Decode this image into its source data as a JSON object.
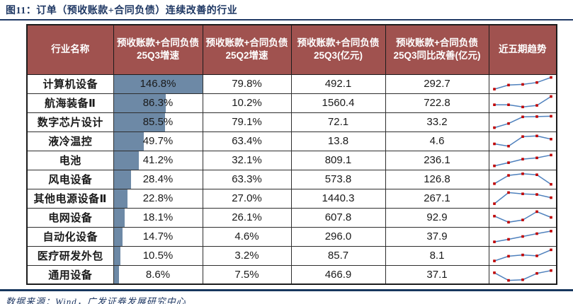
{
  "title": "图11：订单（预收账款+合同负债）连续改善的行业",
  "footer": {
    "source": "数据来源：Wind，广发证券发展研究中心"
  },
  "colors": {
    "header_bg": "#A0524F",
    "header_text": "#FFFFFF",
    "growth_bar": "#6D89A6",
    "title_navy": "#1F3864",
    "sparkline_line": "#4F81BD",
    "sparkline_marker": "#C00000",
    "grid_border": "#2e2e2e"
  },
  "chart_data": {
    "type": "table",
    "title": "图11：订单（预收账款+合同负债）连续改善的行业",
    "columns": [
      "行业名称",
      "预收账款+合同负债25Q3增速",
      "预收账款+合同负债25Q2增速",
      "预收账款+合同负债25Q3(亿元)",
      "预收账款+合同负债25Q3同比改善(亿元)",
      "近五期趋势"
    ],
    "bar_max_pct": 146.8,
    "sparkline_type": "line",
    "rows": [
      {
        "industry": "计算机设备",
        "q3_growth_pct": 146.8,
        "q3_growth_label": "146.8%",
        "q2_growth_pct": 79.8,
        "q2_growth_label": "79.8%",
        "q3_balance": 492.1,
        "q3_balance_label": "492.1",
        "yoy_improve": 292.7,
        "yoy_improve_label": "292.7",
        "trend": [
          0.08,
          0.4,
          0.45,
          0.6,
          1.0
        ]
      },
      {
        "industry": "航海装备Ⅱ",
        "q3_growth_pct": 86.3,
        "q3_growth_label": "86.3%",
        "q2_growth_pct": 10.2,
        "q2_growth_label": "10.2%",
        "q3_balance": 1560.4,
        "q3_balance_label": "1560.4",
        "yoy_improve": 722.8,
        "yoy_improve_label": "722.8",
        "trend": [
          0.35,
          0.35,
          0.18,
          0.3,
          1.0
        ]
      },
      {
        "industry": "数字芯片设计",
        "q3_growth_pct": 85.5,
        "q3_growth_label": "85.5%",
        "q2_growth_pct": 79.1,
        "q2_growth_label": "79.1%",
        "q3_balance": 72.1,
        "q3_balance_label": "72.1",
        "yoy_improve": 33.2,
        "yoy_improve_label": "33.2",
        "trend": [
          0.05,
          0.38,
          0.9,
          0.92,
          0.95
        ]
      },
      {
        "industry": "液冷温控",
        "q3_growth_pct": 49.7,
        "q3_growth_label": "49.7%",
        "q2_growth_pct": 63.4,
        "q2_growth_label": "63.4%",
        "q3_balance": 13.8,
        "q3_balance_label": "13.8",
        "yoy_improve": 4.6,
        "yoy_improve_label": "4.6",
        "trend": [
          0.28,
          0.1,
          0.85,
          0.9,
          0.65
        ]
      },
      {
        "industry": "电池",
        "q3_growth_pct": 41.2,
        "q3_growth_label": "41.2%",
        "q2_growth_pct": 32.1,
        "q2_growth_label": "32.1%",
        "q3_balance": 809.1,
        "q3_balance_label": "809.1",
        "yoy_improve": 236.1,
        "yoy_improve_label": "236.1",
        "trend": [
          0.05,
          0.3,
          0.58,
          0.68,
          0.9
        ]
      },
      {
        "industry": "风电设备",
        "q3_growth_pct": 28.4,
        "q3_growth_label": "28.4%",
        "q2_growth_pct": 63.3,
        "q2_growth_label": "63.3%",
        "q3_balance": 573.8,
        "q3_balance_label": "573.8",
        "yoy_improve": 126.8,
        "yoy_improve_label": "126.8",
        "trend": [
          0.15,
          0.8,
          0.93,
          0.85,
          0.1
        ]
      },
      {
        "industry": "其他电源设备Ⅱ",
        "q3_growth_pct": 22.8,
        "q3_growth_label": "22.8%",
        "q2_growth_pct": 27.0,
        "q2_growth_label": "27.0%",
        "q3_balance": 1440.3,
        "q3_balance_label": "1440.3",
        "yoy_improve": 267.1,
        "yoy_improve_label": "267.1",
        "trend": [
          0.08,
          0.95,
          0.85,
          0.8,
          0.55
        ]
      },
      {
        "industry": "电网设备",
        "q3_growth_pct": 18.1,
        "q3_growth_label": "18.1%",
        "q2_growth_pct": 26.1,
        "q2_growth_label": "26.1%",
        "q3_balance": 607.8,
        "q3_balance_label": "607.8",
        "yoy_improve": 92.9,
        "yoy_improve_label": "92.9",
        "trend": [
          0.6,
          0.12,
          0.3,
          0.95,
          0.5
        ]
      },
      {
        "industry": "自动化设备",
        "q3_growth_pct": 14.7,
        "q3_growth_label": "14.7%",
        "q2_growth_pct": 4.6,
        "q2_growth_label": "4.6%",
        "q3_balance": 296.0,
        "q3_balance_label": "296.0",
        "yoy_improve": 37.9,
        "yoy_improve_label": "37.9",
        "trend": [
          0.08,
          0.28,
          0.5,
          0.72,
          0.92
        ]
      },
      {
        "industry": "医疗研发外包",
        "q3_growth_pct": 10.5,
        "q3_growth_label": "10.5%",
        "q2_growth_pct": 3.2,
        "q2_growth_label": "3.2%",
        "q3_balance": 85.7,
        "q3_balance_label": "85.7",
        "yoy_improve": 8.1,
        "yoy_improve_label": "8.1",
        "trend": [
          0.08,
          0.45,
          0.55,
          0.48,
          0.95
        ]
      },
      {
        "industry": "通用设备",
        "q3_growth_pct": 8.6,
        "q3_growth_label": "8.6%",
        "q2_growth_pct": 7.5,
        "q2_growth_label": "7.5%",
        "q3_balance": 466.9,
        "q3_balance_label": "466.9",
        "yoy_improve": 37.1,
        "yoy_improve_label": "37.1",
        "trend": [
          0.65,
          0.05,
          0.1,
          0.6,
          0.82
        ]
      }
    ]
  }
}
